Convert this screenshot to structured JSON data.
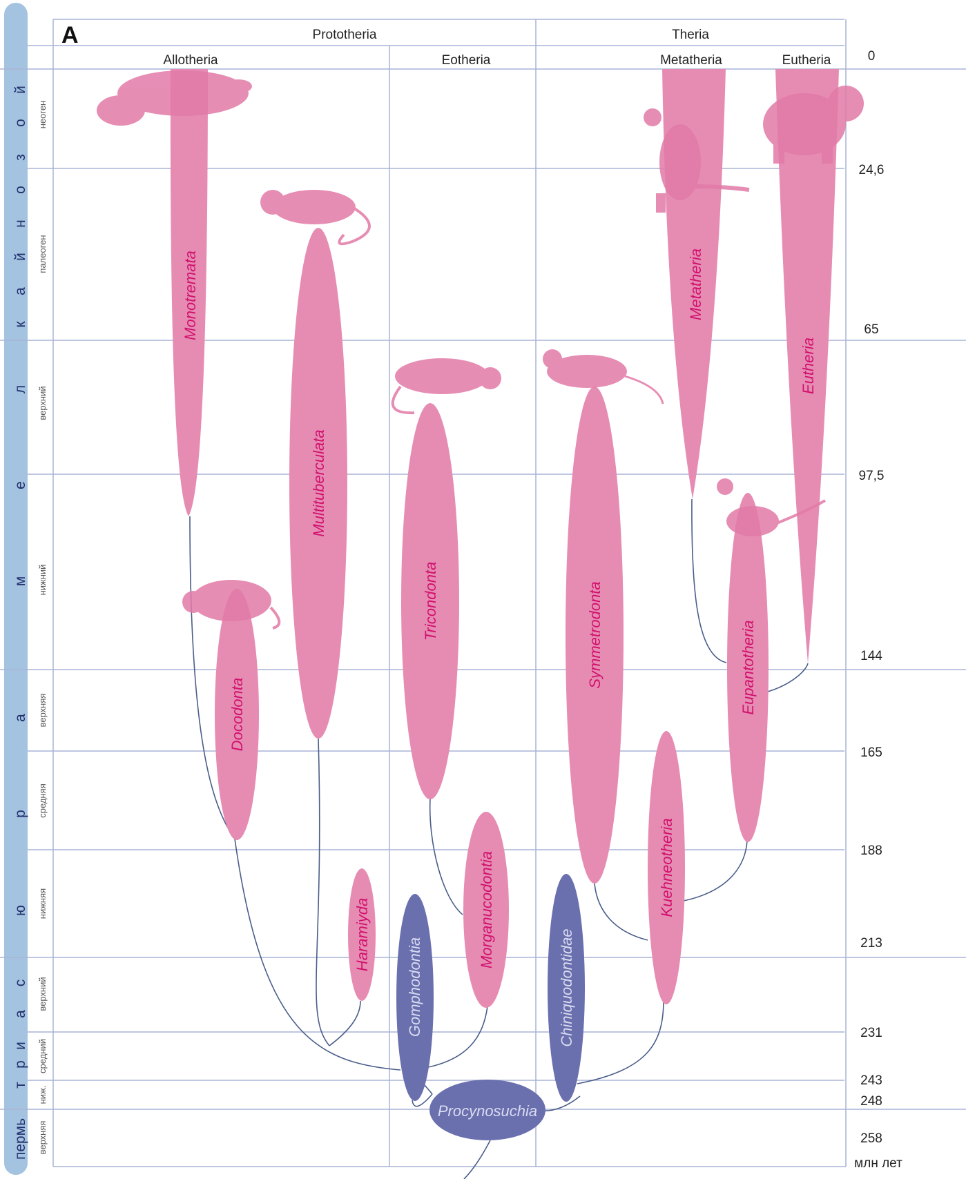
{
  "panel_label": "A",
  "header": {
    "groups": [
      {
        "id": "prototheria",
        "label": "Prototheria"
      },
      {
        "id": "theria",
        "label": "Theria"
      }
    ],
    "subgroups": [
      {
        "id": "allotheria",
        "label": "Allotheria"
      },
      {
        "id": "eotheria",
        "label": "Eotheria"
      },
      {
        "id": "metatheria",
        "label": "Metatheria"
      },
      {
        "id": "eutheria",
        "label": "Eutheria"
      }
    ]
  },
  "eras": [
    {
      "id": "cenozoic",
      "letters": [
        "к",
        "а",
        "й",
        "н",
        "о",
        "з",
        "о",
        "й"
      ]
    },
    {
      "id": "mesozoic",
      "letters": [
        "м",
        "е",
        "л"
      ]
    },
    {
      "id": "jurassic",
      "letters": [
        "ю",
        "р",
        "а"
      ]
    },
    {
      "id": "triassic",
      "letters": [
        "т",
        "р",
        "и",
        "а",
        "с"
      ]
    },
    {
      "id": "permian",
      "label": "пермь"
    }
  ],
  "periods": [
    {
      "id": "neogene",
      "label": "неоген"
    },
    {
      "id": "paleogene",
      "label": "палеоген"
    },
    {
      "id": "upper-cretaceous",
      "label": "верхний"
    },
    {
      "id": "lower-cretaceous",
      "label": "нижний"
    },
    {
      "id": "upper-jurassic",
      "label": "верхняя"
    },
    {
      "id": "middle-jurassic",
      "label": "средняя"
    },
    {
      "id": "lower-jurassic",
      "label": "нижняя"
    },
    {
      "id": "upper-triassic",
      "label": "верхний"
    },
    {
      "id": "middle-triassic",
      "label": "средний"
    },
    {
      "id": "lower-triassic",
      "label": "ниж."
    },
    {
      "id": "upper-permian",
      "label": "верхняя"
    }
  ],
  "time_ticks": [
    "0",
    "24,6",
    "65",
    "97,5",
    "144",
    "165",
    "188",
    "213",
    "231",
    "243",
    "248",
    "258"
  ],
  "time_unit": "млн лет",
  "clades": [
    {
      "id": "monotremata",
      "label": "Monotremata",
      "kind": "crown"
    },
    {
      "id": "multituberculata",
      "label": "Multituberculata",
      "kind": "extinct"
    },
    {
      "id": "docodonta",
      "label": "Docodonta",
      "kind": "extinct"
    },
    {
      "id": "haramiyda",
      "label": "Haramiyda",
      "kind": "extinct"
    },
    {
      "id": "gomphodontia",
      "label": "Gomphodontia",
      "kind": "outgroup"
    },
    {
      "id": "tricondonta",
      "label": "Tricondonta",
      "kind": "extinct"
    },
    {
      "id": "morganucodontia",
      "label": "Morganucodontia",
      "kind": "extinct"
    },
    {
      "id": "procynosuchia",
      "label": "Procynosuchia",
      "kind": "outgroup"
    },
    {
      "id": "chiniquodontidae",
      "label": "Chiniquodontidae",
      "kind": "outgroup"
    },
    {
      "id": "symmetrodonta",
      "label": "Symmetrodonta",
      "kind": "extinct"
    },
    {
      "id": "kuehneotheria",
      "label": "Kuehneotheria",
      "kind": "extinct"
    },
    {
      "id": "eupantotheria",
      "label": "Eupantotheria",
      "kind": "extinct"
    },
    {
      "id": "metatheria",
      "label": "Metatheria",
      "kind": "crown"
    },
    {
      "id": "eutheria",
      "label": "Eutheria",
      "kind": "crown"
    }
  ],
  "animals": [
    {
      "id": "platypus",
      "icon": "platypus-illustration"
    },
    {
      "id": "multituberculate",
      "icon": "multituberculate-illustration"
    },
    {
      "id": "docodont",
      "icon": "docodont-illustration"
    },
    {
      "id": "triconodont",
      "icon": "triconodont-illustration"
    },
    {
      "id": "symmetrodont",
      "icon": "symmetrodont-illustration"
    },
    {
      "id": "kangaroo",
      "icon": "kangaroo-illustration"
    },
    {
      "id": "elephant",
      "icon": "elephant-illustration"
    },
    {
      "id": "eupantothere",
      "icon": "eupantothere-illustration"
    }
  ],
  "colors": {
    "pink_fill": "#e68cb3",
    "pink_text": "#d1106d",
    "blue_fill": "#6a6fae",
    "blue_text": "#d9dcf0",
    "grid": "#a9b4d6",
    "branch": "#4a5d8a",
    "era_bar": "#a3c3e0"
  }
}
